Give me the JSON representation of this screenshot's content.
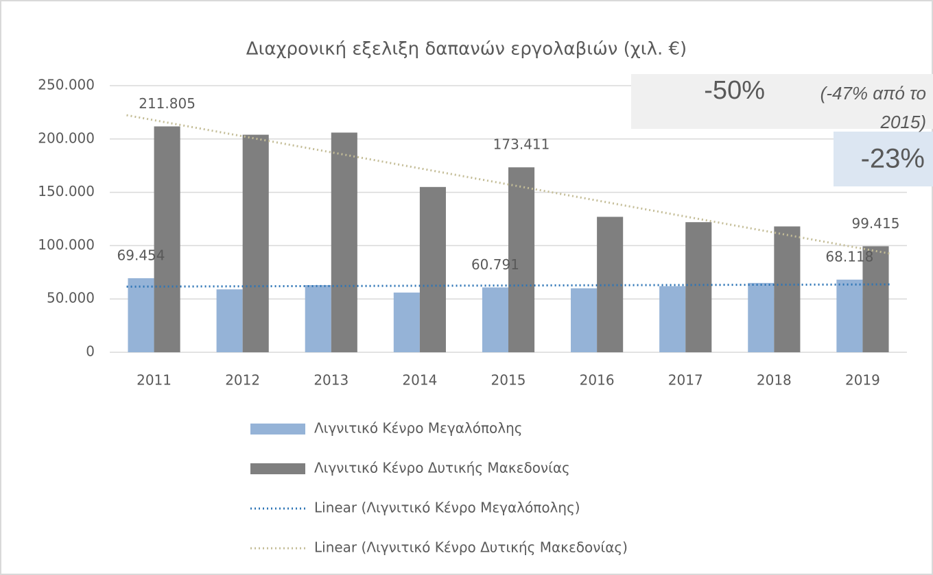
{
  "chart_data": {
    "type": "bar",
    "title": "Διαχρονική εξελιξη δαπανών εργολαβιών (χιλ. €)",
    "categories": [
      "2011",
      "2012",
      "2013",
      "2014",
      "2015",
      "2016",
      "2017",
      "2018",
      "2019"
    ],
    "series": [
      {
        "name": "Λιγνιτικό Κένρο Μεγαλόπολης",
        "color": "#95b3d7",
        "values": [
          69454,
          59000,
          63000,
          56000,
          60791,
          60000,
          62000,
          65000,
          68118
        ],
        "value_labels": [
          "69.454",
          null,
          null,
          null,
          "60.791",
          null,
          null,
          null,
          "68.118"
        ]
      },
      {
        "name": "Λιγνιτικό Κένρο Δυτικής Μακεδονίας",
        "color": "#7f7f7f",
        "values": [
          211805,
          204000,
          206000,
          155000,
          173411,
          127000,
          122000,
          118000,
          99415
        ],
        "value_labels": [
          "211.805",
          null,
          null,
          null,
          "173.411",
          null,
          null,
          null,
          "99.415"
        ]
      }
    ],
    "trendlines": [
      {
        "name": "Linear (Λιγνιτικό Κένρο Μεγαλόπολης)",
        "color": "#2e75b6",
        "series": 0
      },
      {
        "name": "Linear (Λιγνιτικό Κένρο Δυτικής Μακεδονίας)",
        "color": "#c4bd97",
        "series": 1
      }
    ],
    "ylim": [
      0,
      250000
    ],
    "yticks": [
      0,
      {
        "value": 50000,
        "label": "50.000"
      },
      {
        "value": 100000,
        "label": "100.000"
      },
      {
        "value": 150000,
        "label": "150.000"
      },
      {
        "value": 200000,
        "label": "200.000"
      },
      {
        "value": 250000,
        "label": "250.000"
      }
    ],
    "grid": true,
    "legend": "bottom",
    "annotations": [
      {
        "text": "-50%",
        "note": "(-47% από το 2015)"
      },
      {
        "text": "-23%"
      }
    ]
  }
}
